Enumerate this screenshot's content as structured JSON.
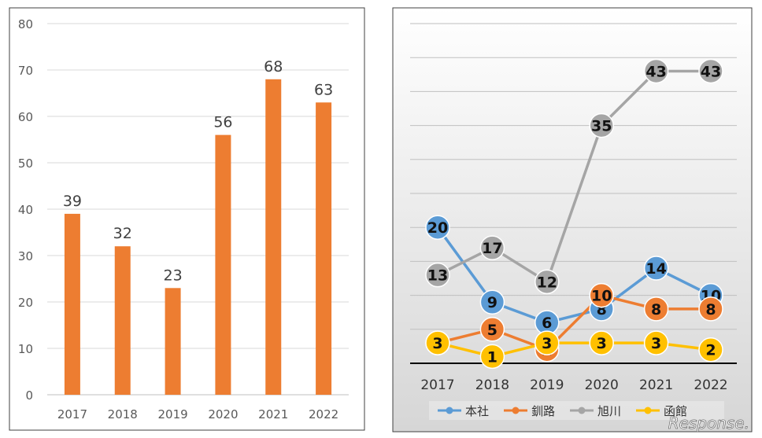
{
  "chart_data": [
    {
      "type": "bar",
      "categories": [
        "2017",
        "2018",
        "2019",
        "2020",
        "2021",
        "2022"
      ],
      "values": [
        39,
        32,
        23,
        56,
        68,
        63
      ],
      "ylim": [
        0,
        80
      ],
      "yticks": [
        "0",
        "10",
        "20",
        "30",
        "40",
        "50",
        "60",
        "70",
        "80"
      ],
      "grid": true,
      "legend": "none",
      "colors": {
        "bar": "#ed7d31",
        "grid": "#d9d9d9",
        "text": "#595959"
      }
    },
    {
      "type": "line",
      "categories": [
        "2017",
        "2018",
        "2019",
        "2020",
        "2021",
        "2022"
      ],
      "ylim": [
        0,
        50
      ],
      "grid": true,
      "legend": "bottom",
      "series": [
        {
          "name": "本社",
          "values": [
            20,
            9,
            6,
            8,
            14,
            10
          ],
          "color": "#5b9bd5"
        },
        {
          "name": "釧路",
          "values": [
            3,
            5,
            2,
            10,
            8,
            8
          ],
          "color": "#ed7d31"
        },
        {
          "name": "旭川",
          "values": [
            13,
            17,
            12,
            35,
            43,
            43
          ],
          "color": "#a5a5a5"
        },
        {
          "name": "函館",
          "values": [
            3,
            1,
            3,
            3,
            3,
            2
          ],
          "color": "#ffc000"
        }
      ]
    }
  ],
  "watermark": "Response."
}
